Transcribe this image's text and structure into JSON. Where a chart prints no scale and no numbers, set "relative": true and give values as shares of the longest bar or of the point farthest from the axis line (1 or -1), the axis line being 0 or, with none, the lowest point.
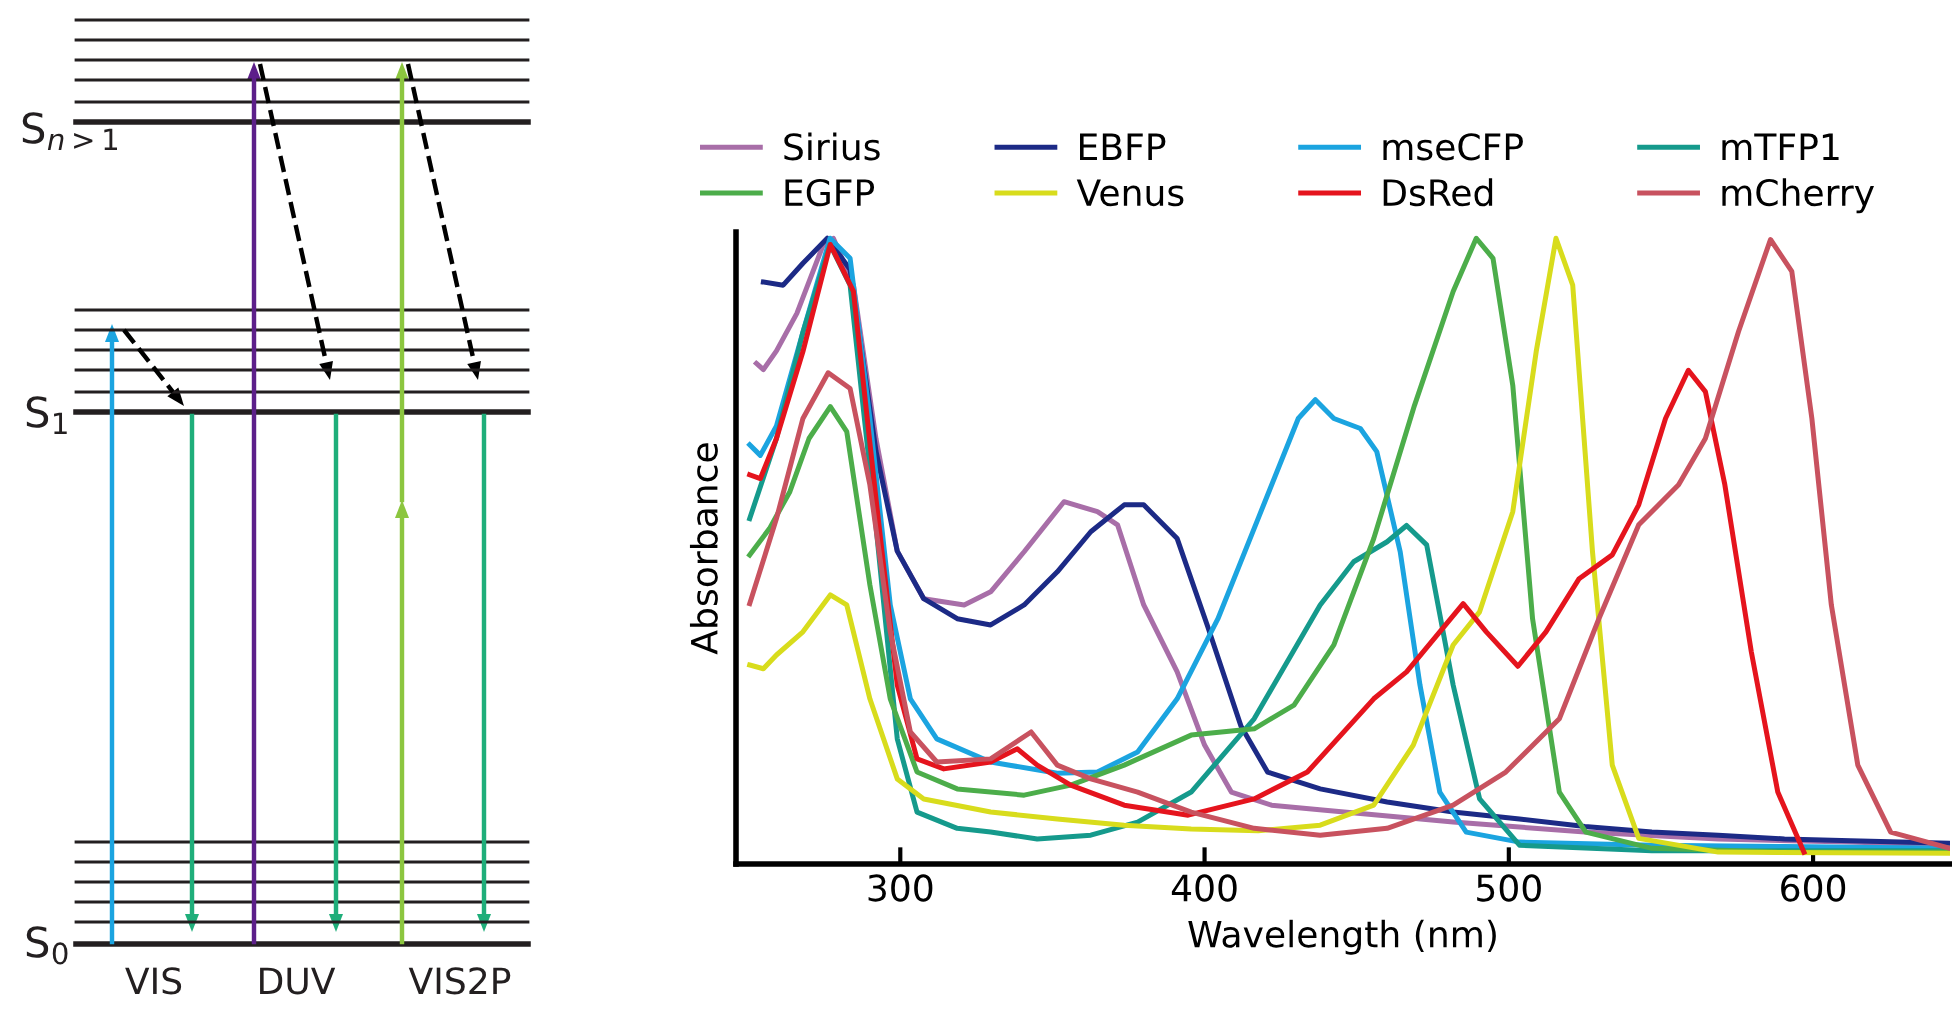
{
  "chart_data": [
    {
      "type": "other",
      "annotations": [
        "S$_{n>1}$",
        "S$_{1}$",
        "S$_{0}$",
        "VIS",
        "DUV",
        "VIS2P"
      ]
    },
    {
      "type": "line",
      "xlabel": "Wavelength (nm)",
      "ylabel": "Absorbance",
      "relative": true,
      "xlim": [
        246,
        645
      ],
      "xticks": [
        300,
        400,
        500,
        600
      ],
      "tick_labels": "x",
      "grid": false,
      "legend": "top",
      "line_style": "solid",
      "marker": "none",
      "series": [
        {
          "name": "Sirius",
          "color": "#a86ea8",
          "x": [
            252.7,
            255,
            259.3,
            266,
            274.7,
            278,
            284.6,
            292,
            299,
            307.7,
            321,
            329.7,
            340.7,
            353.8,
            364.8,
            371.4,
            380,
            391,
            400,
            408.8,
            422,
            439.6,
            481.7,
            525,
            568.8,
            612,
            645
          ],
          "values": [
            0.8,
            0.79,
            0.82,
            0.88,
            0.99,
            1.0,
            0.925,
            0.68,
            0.5,
            0.424,
            0.414,
            0.435,
            0.499,
            0.579,
            0.563,
            0.542,
            0.414,
            0.307,
            0.19,
            0.115,
            0.094,
            0.086,
            0.067,
            0.051,
            0.04,
            0.035,
            0.03
          ]
        },
        {
          "name": "EBFP",
          "color": "#1c2a86",
          "x": [
            255,
            261.5,
            268,
            276,
            283.5,
            292,
            299,
            307.7,
            318.7,
            329.7,
            340.7,
            351.6,
            362.6,
            373.6,
            380,
            391,
            401,
            412,
            420.7,
            438,
            460,
            481.7,
            503.5,
            525,
            547,
            568.8,
            590.6,
            612.4,
            645
          ],
          "values": [
            0.93,
            0.925,
            0.96,
            1.0,
            0.95,
            0.66,
            0.5,
            0.424,
            0.392,
            0.382,
            0.414,
            0.467,
            0.531,
            0.574,
            0.574,
            0.52,
            0.38,
            0.22,
            0.147,
            0.12,
            0.099,
            0.083,
            0.072,
            0.06,
            0.051,
            0.046,
            0.04,
            0.037,
            0.033
          ]
        },
        {
          "name": "mseCFP",
          "color": "#1ba4e0",
          "x": [
            250.5,
            254,
            259.3,
            268,
            276.9,
            283.5,
            290,
            296.7,
            303.3,
            312,
            329.7,
            351.6,
            364.8,
            378,
            391,
            404.4,
            417.6,
            430.8,
            436.4,
            442.5,
            451.2,
            456.6,
            464.3,
            470.8,
            477.3,
            486,
            503.5,
            547,
            590.6,
            645
          ],
          "values": [
            0.67,
            0.653,
            0.7,
            0.85,
            1.0,
            0.968,
            0.712,
            0.414,
            0.264,
            0.2,
            0.163,
            0.145,
            0.147,
            0.179,
            0.264,
            0.392,
            0.552,
            0.712,
            0.742,
            0.712,
            0.696,
            0.659,
            0.499,
            0.286,
            0.115,
            0.051,
            0.035,
            0.03,
            0.028,
            0.025
          ]
        },
        {
          "name": "mTFP1",
          "color": "#159a8c",
          "x": [
            250.5,
            259.3,
            268,
            276.9,
            283.5,
            292,
            299,
            305.5,
            318.7,
            329.7,
            345,
            362.6,
            378,
            395.6,
            416.3,
            438,
            449,
            460,
            466.4,
            473,
            481.7,
            490.4,
            503.5,
            547,
            590.6,
            645
          ],
          "values": [
            0.552,
            0.68,
            0.85,
            0.99,
            0.925,
            0.54,
            0.2,
            0.083,
            0.057,
            0.051,
            0.04,
            0.046,
            0.067,
            0.115,
            0.232,
            0.414,
            0.483,
            0.515,
            0.541,
            0.51,
            0.286,
            0.104,
            0.03,
            0.021,
            0.021,
            0.021
          ]
        },
        {
          "name": "EGFP",
          "color": "#4cad4a",
          "x": [
            250.5,
            257,
            263.7,
            270,
            277,
            282.4,
            290,
            296.7,
            305.5,
            318.7,
            340.7,
            356,
            373.6,
            395.6,
            416.3,
            429.4,
            442.5,
            455.6,
            469,
            481.7,
            489.3,
            494.8,
            501.3,
            507.8,
            516.6,
            525.3,
            547,
            590.6,
            645
          ],
          "values": [
            0.494,
            0.536,
            0.595,
            0.68,
            0.731,
            0.691,
            0.446,
            0.264,
            0.147,
            0.12,
            0.11,
            0.126,
            0.158,
            0.206,
            0.216,
            0.254,
            0.35,
            0.52,
            0.733,
            0.915,
            1.0,
            0.968,
            0.765,
            0.392,
            0.115,
            0.051,
            0.025,
            0.019,
            0.019
          ]
        },
        {
          "name": "Venus",
          "color": "#d8dc1c",
          "x": [
            250.5,
            255,
            259.3,
            268,
            277,
            282.4,
            290,
            299,
            307.7,
            329.7,
            351.6,
            373.6,
            395.6,
            417.6,
            438,
            455.6,
            468.6,
            481.7,
            490.4,
            501.3,
            509,
            515.5,
            521,
            527.5,
            534,
            542.7,
            568.8,
            645
          ],
          "values": [
            0.318,
            0.312,
            0.334,
            0.371,
            0.43,
            0.414,
            0.264,
            0.136,
            0.104,
            0.083,
            0.072,
            0.062,
            0.056,
            0.053,
            0.062,
            0.094,
            0.19,
            0.35,
            0.403,
            0.563,
            0.819,
            1.0,
            0.925,
            0.499,
            0.158,
            0.041,
            0.019,
            0.017
          ]
        },
        {
          "name": "DsRed",
          "color": "#e5141d",
          "x": [
            250.5,
            254,
            259.3,
            268,
            277,
            284.6,
            292,
            299,
            305.5,
            314.3,
            329.7,
            338.5,
            345,
            356,
            373.6,
            394.6,
            416.3,
            433.8,
            455.6,
            466.4,
            477.3,
            485,
            492.6,
            503,
            512.2,
            523.1,
            534,
            542.7,
            551.5,
            559,
            564.6,
            571,
            579.7,
            588.4,
            597
          ],
          "values": [
            0.622,
            0.616,
            0.68,
            0.819,
            0.99,
            0.915,
            0.584,
            0.286,
            0.168,
            0.152,
            0.163,
            0.184,
            0.158,
            0.126,
            0.094,
            0.078,
            0.104,
            0.147,
            0.264,
            0.307,
            0.371,
            0.416,
            0.371,
            0.316,
            0.371,
            0.456,
            0.494,
            0.574,
            0.712,
            0.789,
            0.755,
            0.606,
            0.339,
            0.115,
            0.019
          ]
        },
        {
          "name": "mCherry",
          "color": "#c8525f",
          "x": [
            250.5,
            259.3,
            268,
            276.3,
            283.5,
            290,
            296.7,
            303.3,
            312,
            329.7,
            343,
            351.6,
            362.6,
            378,
            395.6,
            416.3,
            438,
            460,
            481.7,
            499,
            516.6,
            529.6,
            542.7,
            555.8,
            564.6,
            575.5,
            586,
            593,
            599.6,
            606,
            614.7,
            625.5,
            645
          ],
          "values": [
            0.416,
            0.552,
            0.712,
            0.785,
            0.76,
            0.606,
            0.371,
            0.211,
            0.163,
            0.168,
            0.211,
            0.158,
            0.136,
            0.115,
            0.083,
            0.057,
            0.046,
            0.057,
            0.094,
            0.147,
            0.232,
            0.392,
            0.542,
            0.606,
            0.68,
            0.851,
            0.998,
            0.947,
            0.712,
            0.414,
            0.158,
            0.051,
            0.025
          ]
        }
      ]
    }
  ]
}
